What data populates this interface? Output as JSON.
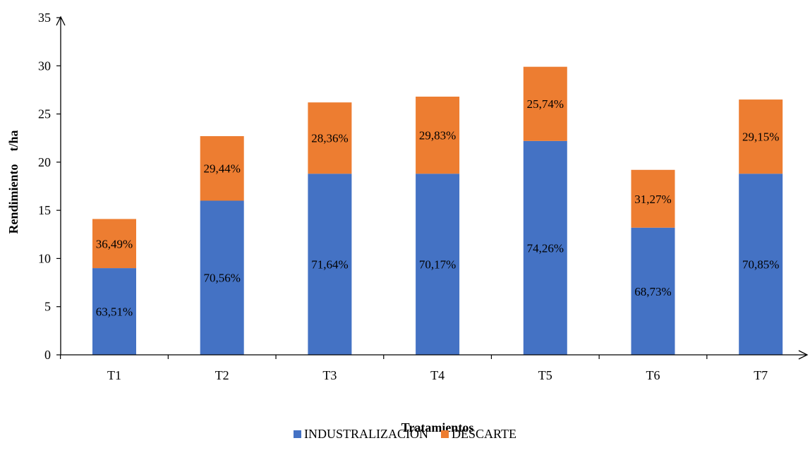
{
  "chart_data": {
    "type": "bar",
    "stacked": true,
    "categories": [
      "T1",
      "T2",
      "T3",
      "T4",
      "T5",
      "T6",
      "T7"
    ],
    "series": [
      {
        "name": "INDUSTRALIZACIÓN",
        "color": "#4472C4",
        "values": [
          9.0,
          16.0,
          18.8,
          18.8,
          22.2,
          13.2,
          18.8
        ],
        "labels": [
          "63,51%",
          "70,56%",
          "71,64%",
          "70,17%",
          "74,26%",
          "68,73%",
          "70,85%"
        ]
      },
      {
        "name": "DESCARTE",
        "color": "#ED7D31",
        "values": [
          5.1,
          6.7,
          7.4,
          8.0,
          7.7,
          6.0,
          7.7
        ],
        "labels": [
          "36,49%",
          "29,44%",
          "28,36%",
          "29,83%",
          "25,74%",
          "31,27%",
          "29,15%"
        ]
      }
    ],
    "xlabel": "Tratamientos",
    "ylabel": "Rendimiento    t/ha",
    "ylim": [
      0,
      35
    ],
    "yticks": [
      "0",
      "5",
      "10",
      "15",
      "20",
      "25",
      "30",
      "35"
    ],
    "grid": false,
    "legend_position": "bottom"
  }
}
